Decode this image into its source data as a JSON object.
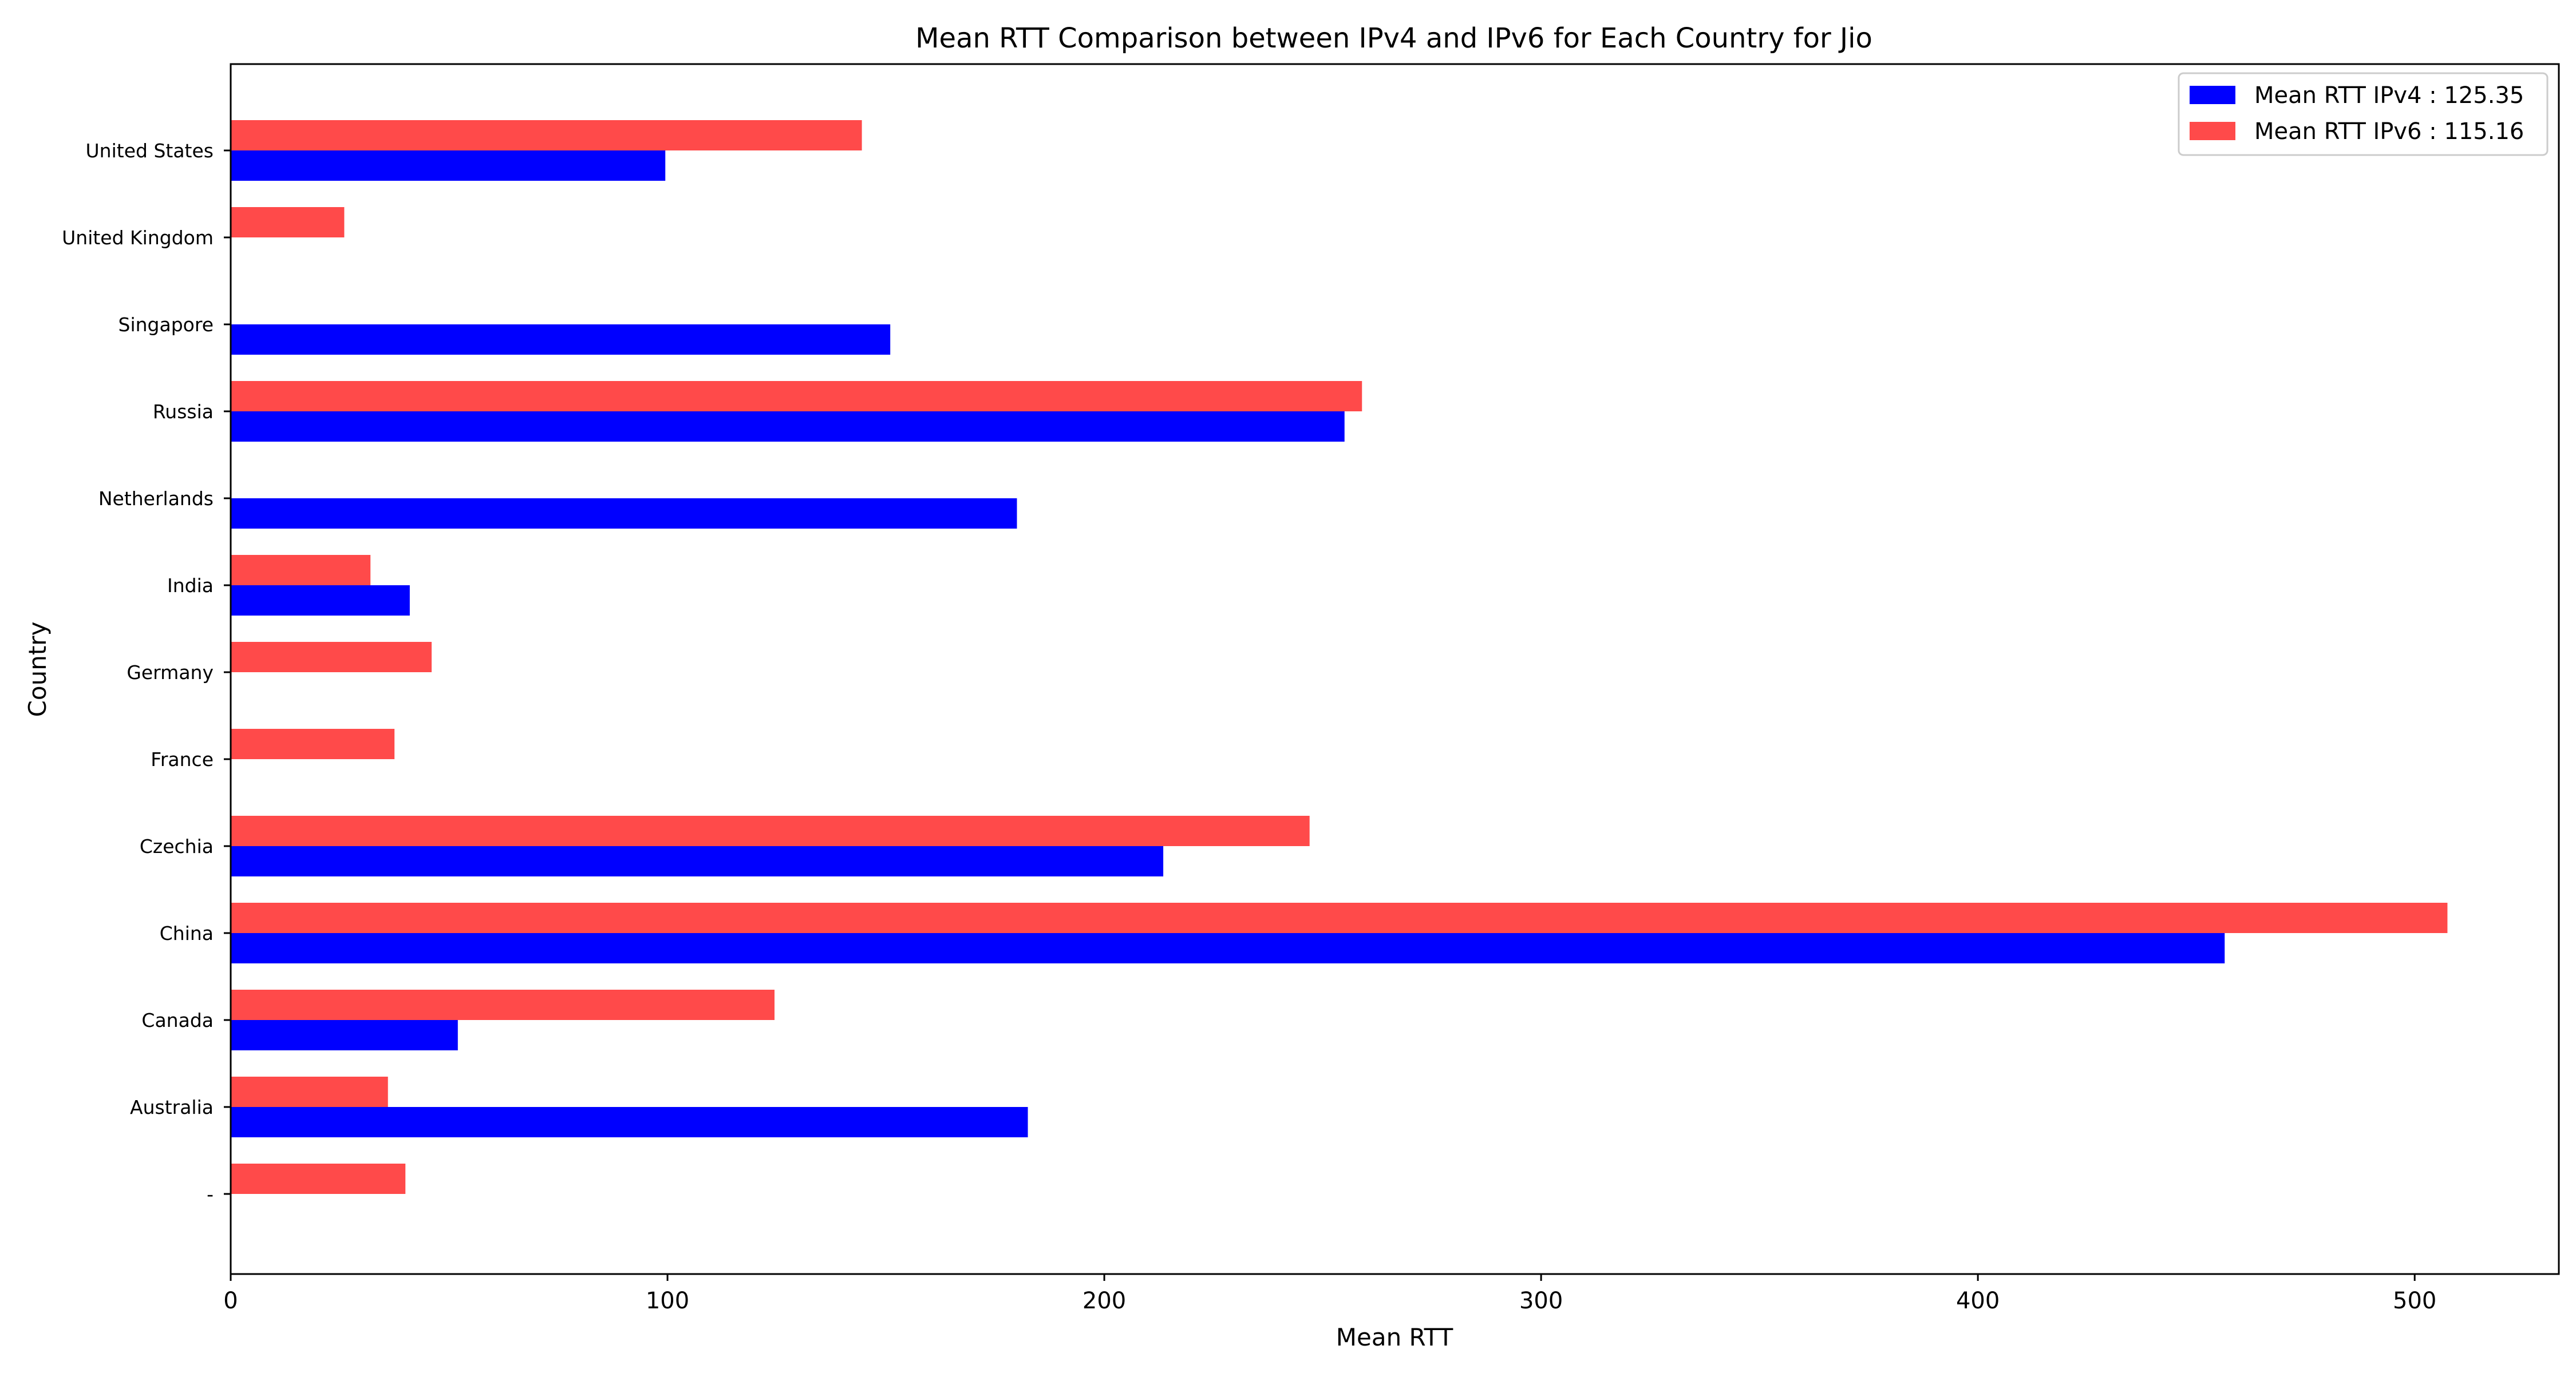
{
  "chart_data": {
    "type": "bar",
    "orientation": "horizontal",
    "title": "Mean RTT Comparison between IPv4 and IPv6 for Each Country for Jio",
    "xlabel": "Mean RTT",
    "ylabel": "Country",
    "categories": [
      "United States",
      "United Kingdom",
      "Singapore",
      "Russia",
      "Netherlands",
      "India",
      "Germany",
      "France",
      "Czechia",
      "China",
      "Canada",
      "Australia",
      "-"
    ],
    "series": [
      {
        "name": "Mean RTT IPv4 : 125.35",
        "color": "#0000ff",
        "values": [
          99.5,
          null,
          151,
          255,
          180,
          41,
          null,
          null,
          213.5,
          456.5,
          52,
          182.5,
          null
        ]
      },
      {
        "name": "Mean RTT IPv6 : 115.16",
        "color": "#ff4a4a",
        "values": [
          144.5,
          26,
          null,
          259,
          null,
          32,
          46,
          37.5,
          247,
          507.5,
          124.5,
          36,
          40
        ]
      }
    ],
    "xlim": [
      0,
      533
    ],
    "xticks": [
      "0",
      "100",
      "200",
      "300",
      "400",
      "500"
    ],
    "grid": false,
    "legend_position": "top-right"
  }
}
